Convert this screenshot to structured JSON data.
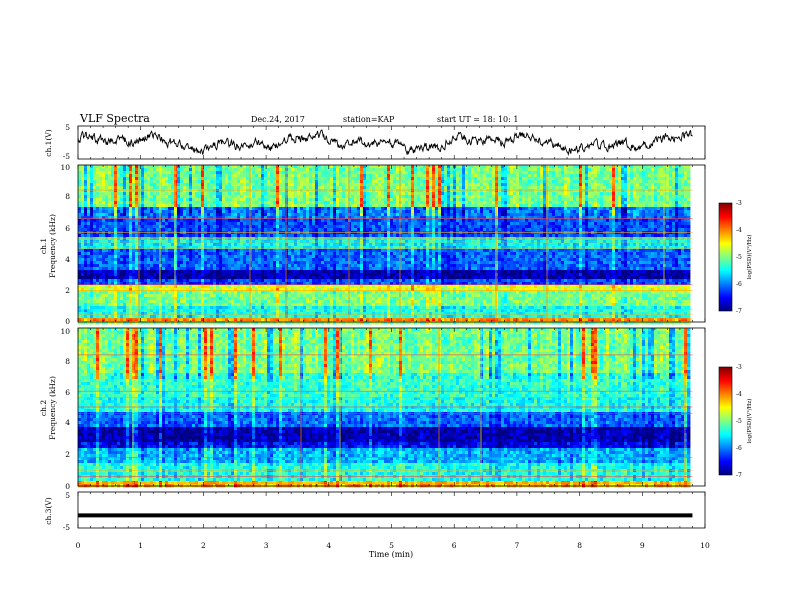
{
  "header": {
    "title": "VLF Spectra",
    "date": "Dec.24, 2017",
    "station": "station=KAP",
    "start_ut": "start  UT =  18: 10: 1"
  },
  "chart_data": [
    {
      "id": "ch1-waveform",
      "type": "line",
      "ylabel": "ch.1(V)",
      "ylim": [
        -5,
        5
      ],
      "yticks": [
        "5",
        "-5"
      ],
      "xlim": [
        0,
        10
      ],
      "description_series": "noisy waveform around 0 V spanning roughly -3..+3 V over 0-9.8 min"
    },
    {
      "id": "ch1-spectrogram",
      "type": "heatmap",
      "ylabel_line1": "ch.1",
      "ylabel_line2": "Frequency (kHz)",
      "ylim": [
        0,
        10
      ],
      "yticks": [
        "0",
        "2",
        "4",
        "6",
        "8",
        "10"
      ],
      "xlim": [
        0,
        10
      ],
      "data_extent_x": [
        0,
        9.8
      ],
      "colorbar": {
        "label": "log(PSD)(V²/Hz)",
        "range": [
          -7,
          -3
        ],
        "ticks": [
          "-3",
          "-4",
          "-5",
          "-6",
          "-7"
        ]
      },
      "bands_kHz": [
        {
          "from": 0.0,
          "to": 0.3,
          "level": -4.0
        },
        {
          "from": 0.3,
          "to": 1.0,
          "level": -5.4
        },
        {
          "from": 1.0,
          "to": 1.9,
          "level": -5.0
        },
        {
          "from": 1.9,
          "to": 2.4,
          "level": -4.6
        },
        {
          "from": 2.4,
          "to": 2.8,
          "level": -6.2
        },
        {
          "from": 2.8,
          "to": 3.4,
          "level": -6.8
        },
        {
          "from": 3.4,
          "to": 4.6,
          "level": -6.1
        },
        {
          "from": 4.6,
          "to": 5.4,
          "level": -5.5
        },
        {
          "from": 5.4,
          "to": 6.6,
          "level": -6.2
        },
        {
          "from": 6.6,
          "to": 7.4,
          "level": -6.0
        },
        {
          "from": 7.4,
          "to": 10.0,
          "level": -5.0
        }
      ],
      "lines_kHz": [
        0.2,
        0.5,
        0.8,
        2.0,
        2.4,
        4.7,
        5.1,
        5.3,
        5.7,
        6.6,
        8.4
      ]
    },
    {
      "id": "ch2-spectrogram",
      "type": "heatmap",
      "ylabel_line1": "ch.2",
      "ylabel_line2": "Frequency (kHz)",
      "ylim": [
        0,
        10
      ],
      "yticks": [
        "0",
        "2",
        "4",
        "6",
        "8",
        "10"
      ],
      "xlim": [
        0,
        10
      ],
      "data_extent_x": [
        0,
        9.8
      ],
      "colorbar": {
        "label": "log(PSD)(V²/Hz)",
        "range": [
          -7,
          -3
        ],
        "ticks": [
          "-3",
          "-4",
          "-5",
          "-6",
          "-7"
        ]
      },
      "bands_kHz": [
        {
          "from": 0.0,
          "to": 0.3,
          "level": -4.2
        },
        {
          "from": 0.3,
          "to": 1.4,
          "level": -5.4
        },
        {
          "from": 1.4,
          "to": 2.4,
          "level": -5.8
        },
        {
          "from": 2.4,
          "to": 2.8,
          "level": -6.5
        },
        {
          "from": 2.8,
          "to": 3.8,
          "level": -6.8
        },
        {
          "from": 3.8,
          "to": 4.6,
          "level": -6.1
        },
        {
          "from": 4.6,
          "to": 5.6,
          "level": -5.4
        },
        {
          "from": 5.6,
          "to": 7.2,
          "level": -5.3
        },
        {
          "from": 7.2,
          "to": 10.0,
          "level": -5.0
        }
      ],
      "lines_kHz": [
        0.2,
        0.6,
        1.0,
        1.8,
        4.6,
        5.0,
        5.6,
        6.0,
        8.3
      ]
    },
    {
      "id": "ch3-waveform",
      "type": "line",
      "ylabel": "ch.3(V)",
      "ylim": [
        -5,
        5
      ],
      "yticks": [
        "5",
        "-5"
      ],
      "xlim": [
        0,
        10
      ],
      "constant_value": -1.5,
      "data_extent_x": [
        0,
        9.8
      ]
    }
  ],
  "xaxis": {
    "label": "Time  (min)",
    "ticks": [
      "0",
      "1",
      "2",
      "3",
      "4",
      "5",
      "6",
      "7",
      "8",
      "9",
      "10"
    ]
  },
  "colors": {
    "colormap": [
      "#000080",
      "#0000ff",
      "#0080ff",
      "#00ffff",
      "#80ff80",
      "#ffff00",
      "#ff8000",
      "#ff0000",
      "#800000"
    ],
    "waveform": "#000000",
    "background": "#ffffff"
  }
}
